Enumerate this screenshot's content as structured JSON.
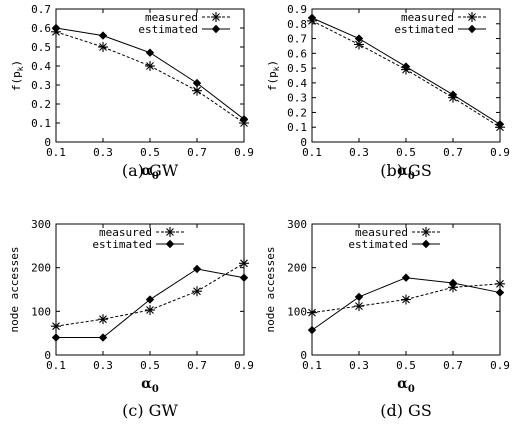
{
  "chart_data": [
    {
      "type": "line",
      "caption": "(a)  GW",
      "ylabel": "f(p_k)",
      "xlabel": "α0",
      "x": [
        0.1,
        0.3,
        0.5,
        0.7,
        0.9
      ],
      "x_ticks": [
        "0.1",
        "0.3",
        "0.5",
        "0.7",
        "0.9"
      ],
      "xlim": [
        0.1,
        0.9
      ],
      "ylim": [
        0,
        0.7
      ],
      "y_ticks": [
        "0",
        "0.1",
        "0.2",
        "0.3",
        "0.4",
        "0.5",
        "0.6",
        "0.7"
      ],
      "legend_position": "top-right",
      "series": [
        {
          "name": "measured",
          "values": [
            0.58,
            0.5,
            0.4,
            0.27,
            0.1
          ],
          "style": "dashed",
          "marker": "asterisk"
        },
        {
          "name": "estimated",
          "values": [
            0.6,
            0.56,
            0.47,
            0.31,
            0.12
          ],
          "style": "solid",
          "marker": "diamond"
        }
      ]
    },
    {
      "type": "line",
      "caption": "(b)  GS",
      "ylabel": "f(p_k)",
      "xlabel": "α0",
      "x": [
        0.1,
        0.3,
        0.5,
        0.7,
        0.9
      ],
      "x_ticks": [
        "0.1",
        "0.3",
        "0.5",
        "0.7",
        "0.9"
      ],
      "xlim": [
        0.1,
        0.9
      ],
      "ylim": [
        0,
        0.9
      ],
      "y_ticks": [
        "0",
        "0.1",
        "0.2",
        "0.3",
        "0.4",
        "0.5",
        "0.6",
        "0.7",
        "0.8",
        "0.9"
      ],
      "legend_position": "top-right",
      "series": [
        {
          "name": "measured",
          "values": [
            0.82,
            0.66,
            0.49,
            0.3,
            0.1
          ],
          "style": "dashed",
          "marker": "asterisk"
        },
        {
          "name": "estimated",
          "values": [
            0.84,
            0.7,
            0.51,
            0.32,
            0.12
          ],
          "style": "solid",
          "marker": "diamond"
        }
      ]
    },
    {
      "type": "line",
      "caption": "(c)  GW",
      "ylabel": "node accesses",
      "xlabel": "α0",
      "x": [
        0.1,
        0.3,
        0.5,
        0.7,
        0.9
      ],
      "x_ticks": [
        "0.1",
        "0.3",
        "0.5",
        "0.7",
        "0.9"
      ],
      "xlim": [
        0.1,
        0.9
      ],
      "ylim": [
        0,
        300
      ],
      "y_ticks": [
        "0",
        "100",
        "200",
        "300"
      ],
      "legend_position": "top-left",
      "series": [
        {
          "name": "measured",
          "values": [
            66,
            82,
            103,
            146,
            210
          ],
          "style": "dashed",
          "marker": "asterisk"
        },
        {
          "name": "estimated",
          "values": [
            40,
            40,
            127,
            197,
            177
          ],
          "style": "solid",
          "marker": "diamond"
        }
      ]
    },
    {
      "type": "line",
      "caption": "(d)  GS",
      "ylabel": "node accesses",
      "xlabel": "α0",
      "x": [
        0.1,
        0.3,
        0.5,
        0.7,
        0.9
      ],
      "x_ticks": [
        "0.1",
        "0.3",
        "0.5",
        "0.7",
        "0.9"
      ],
      "xlim": [
        0.1,
        0.9
      ],
      "ylim": [
        0,
        300
      ],
      "y_ticks": [
        "0",
        "100",
        "200",
        "300"
      ],
      "legend_position": "top-left",
      "series": [
        {
          "name": "measured",
          "values": [
            97,
            112,
            127,
            155,
            163
          ],
          "style": "dashed",
          "marker": "asterisk"
        },
        {
          "name": "estimated",
          "values": [
            57,
            133,
            177,
            165,
            143
          ],
          "style": "solid",
          "marker": "diamond"
        }
      ]
    }
  ]
}
